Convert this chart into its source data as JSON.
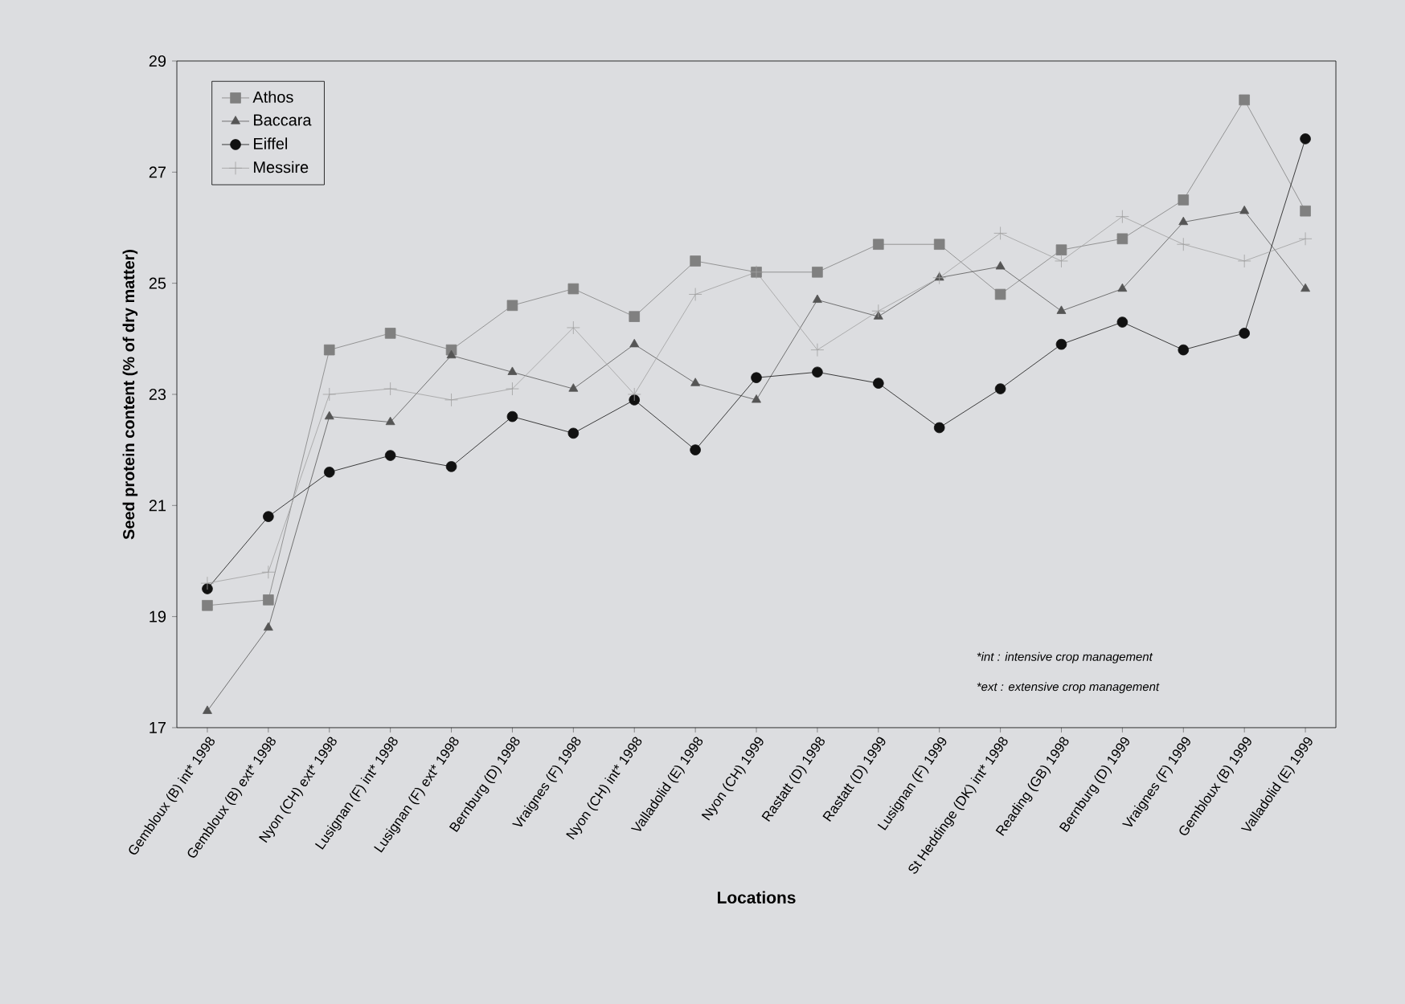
{
  "chart_data": {
    "type": "line",
    "xlabel": "Locations",
    "ylabel": "Seed protein content (% of dry matter)",
    "categories": [
      "Gembloux (B) int* 1998",
      "Gembloux (B) ext* 1998",
      "Nyon (CH) ext* 1998",
      "Lusignan (F) int* 1998",
      "Lusignan (F) ext* 1998",
      "Bernburg (D) 1998",
      "Vraignes (F) 1998",
      "Nyon (CH) int* 1998",
      "Valladolid (E) 1998",
      "Nyon (CH) 1999",
      "Rastatt (D) 1998",
      "Rastatt (D) 1999",
      "Lusignan (F) 1999",
      "St Heddinge (DK) int* 1998",
      "Reading (GB) 1998",
      "Bernburg (D) 1999",
      "Vraignes (F) 1999",
      "Gembloux (B) 1999",
      "Valladolid (E) 1999"
    ],
    "series": [
      {
        "name": "Athos",
        "color": "#808080",
        "marker": "square",
        "values": [
          19.2,
          19.3,
          23.8,
          24.1,
          23.8,
          24.6,
          24.9,
          24.4,
          25.4,
          25.2,
          25.2,
          25.7,
          25.7,
          24.8,
          25.6,
          25.8,
          26.5,
          28.3,
          26.3
        ]
      },
      {
        "name": "Baccara",
        "color": "#555555",
        "marker": "triangle",
        "values": [
          17.3,
          18.8,
          22.6,
          22.5,
          23.7,
          23.4,
          23.1,
          23.9,
          23.2,
          22.9,
          24.7,
          24.4,
          25.1,
          25.3,
          24.5,
          24.9,
          26.1,
          26.3,
          24.9
        ]
      },
      {
        "name": "Eiffel",
        "color": "#111111",
        "marker": "circle",
        "values": [
          19.5,
          20.8,
          21.6,
          21.9,
          21.7,
          22.6,
          22.3,
          22.9,
          22.0,
          23.3,
          23.4,
          23.2,
          22.4,
          23.1,
          23.9,
          24.3,
          23.8,
          24.1,
          27.6
        ]
      },
      {
        "name": "Messire",
        "color": "#a0a0a0",
        "marker": "cross",
        "values": [
          19.6,
          19.8,
          23.0,
          23.1,
          22.9,
          23.1,
          24.2,
          23.0,
          24.8,
          25.2,
          23.8,
          24.5,
          25.1,
          25.9,
          25.4,
          26.2,
          25.7,
          25.4,
          25.8
        ]
      }
    ],
    "ylim": [
      17,
      29
    ],
    "yticks": [
      17,
      19,
      21,
      23,
      25,
      27,
      29
    ],
    "grid": false,
    "legend": "top left",
    "annotations": [
      "*int : intensive crop management",
      "*ext : extensive crop management"
    ]
  }
}
